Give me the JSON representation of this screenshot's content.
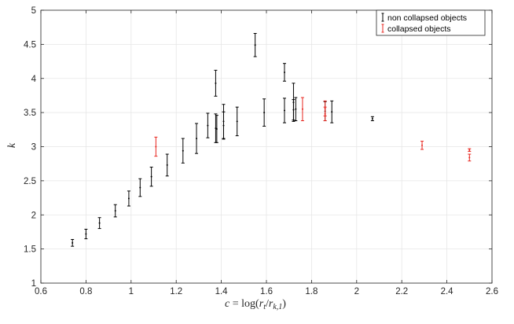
{
  "chart_data": {
    "type": "scatter",
    "title": "",
    "xlabel": "c = log(r_t/r_k,1)",
    "ylabel": "k",
    "xlim": [
      0.6,
      2.6
    ],
    "ylim": [
      1,
      5
    ],
    "xticks": [
      "0.6",
      "0.8",
      "1",
      "1.2",
      "1.4",
      "1.6",
      "1.8",
      "2",
      "2.2",
      "2.4",
      "2.6"
    ],
    "yticks": [
      "1",
      "1.5",
      "2",
      "2.5",
      "3",
      "3.5",
      "4",
      "4.5",
      "5"
    ],
    "grid": true,
    "legend_position": "top-right",
    "series": [
      {
        "name": "non collapsed objects",
        "color": "#000000",
        "points": [
          {
            "x": 0.74,
            "y": 1.59,
            "err": 0.05
          },
          {
            "x": 0.8,
            "y": 1.72,
            "err": 0.07
          },
          {
            "x": 0.86,
            "y": 1.88,
            "err": 0.08
          },
          {
            "x": 0.93,
            "y": 2.06,
            "err": 0.09
          },
          {
            "x": 0.99,
            "y": 2.24,
            "err": 0.11
          },
          {
            "x": 1.04,
            "y": 2.4,
            "err": 0.13
          },
          {
            "x": 1.09,
            "y": 2.56,
            "err": 0.14
          },
          {
            "x": 1.16,
            "y": 2.73,
            "err": 0.16
          },
          {
            "x": 1.23,
            "y": 2.94,
            "err": 0.18
          },
          {
            "x": 1.29,
            "y": 3.12,
            "err": 0.22
          },
          {
            "x": 1.34,
            "y": 3.31,
            "err": 0.18
          },
          {
            "x": 1.375,
            "y": 3.27,
            "err": 0.21
          },
          {
            "x": 1.375,
            "y": 3.93,
            "err": 0.19
          },
          {
            "x": 1.38,
            "y": 3.26,
            "err": 0.2
          },
          {
            "x": 1.41,
            "y": 3.31,
            "err": 0.2
          },
          {
            "x": 1.41,
            "y": 3.37,
            "err": 0.25
          },
          {
            "x": 1.47,
            "y": 3.37,
            "err": 0.21
          },
          {
            "x": 1.55,
            "y": 4.49,
            "err": 0.17
          },
          {
            "x": 1.59,
            "y": 3.5,
            "err": 0.2
          },
          {
            "x": 1.68,
            "y": 4.09,
            "err": 0.13
          },
          {
            "x": 1.68,
            "y": 3.53,
            "err": 0.18
          },
          {
            "x": 1.72,
            "y": 3.54,
            "err": 0.15
          },
          {
            "x": 1.72,
            "y": 3.65,
            "err": 0.28
          },
          {
            "x": 1.73,
            "y": 3.55,
            "err": 0.17
          },
          {
            "x": 1.86,
            "y": 3.52,
            "err": 0.14
          },
          {
            "x": 1.89,
            "y": 3.51,
            "err": 0.16
          },
          {
            "x": 2.07,
            "y": 3.41,
            "err": 0.03
          }
        ]
      },
      {
        "name": "collapsed objects",
        "color": "#e8261f",
        "points": [
          {
            "x": 1.11,
            "y": 3.0,
            "err": 0.14
          },
          {
            "x": 1.76,
            "y": 3.55,
            "err": 0.17
          },
          {
            "x": 1.86,
            "y": 3.56,
            "err": 0.11
          },
          {
            "x": 1.86,
            "y": 3.48,
            "err": 0.1
          },
          {
            "x": 2.29,
            "y": 3.02,
            "err": 0.06
          },
          {
            "x": 2.5,
            "y": 2.95,
            "err": 0.02
          },
          {
            "x": 2.5,
            "y": 2.84,
            "err": 0.05
          }
        ]
      }
    ]
  }
}
